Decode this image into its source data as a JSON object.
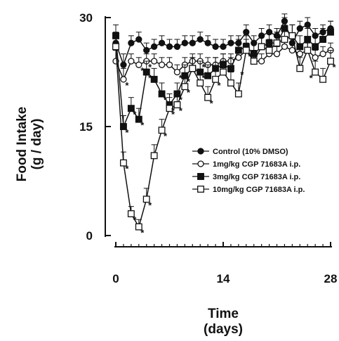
{
  "chart_data": {
    "type": "line",
    "xlabel": "Time",
    "xlabel_unit": "(days)",
    "ylabel": "Food Intake",
    "ylabel_unit": "(g / day)",
    "xlim": [
      0,
      28
    ],
    "ylim": [
      0,
      30
    ],
    "xticks": [
      0,
      14,
      28
    ],
    "yticks": [
      0,
      15,
      30
    ],
    "x": [
      0,
      1,
      2,
      3,
      4,
      5,
      6,
      7,
      8,
      9,
      10,
      11,
      12,
      13,
      14,
      15,
      16,
      17,
      18,
      19,
      20,
      21,
      22,
      23,
      24,
      25,
      26,
      27,
      28
    ],
    "series": [
      {
        "name": "Control (10% DMSO)",
        "marker": "filled-circle",
        "values": [
          26.5,
          23.5,
          26.5,
          27.0,
          25.5,
          26.0,
          26.5,
          26.0,
          26.0,
          26.5,
          26.5,
          27.0,
          26.5,
          26.0,
          26.0,
          26.5,
          26.5,
          28.0,
          26.5,
          27.5,
          28.0,
          27.5,
          29.5,
          26.5,
          28.5,
          29.0,
          27.5,
          28.0,
          28.5
        ],
        "errors": [
          1.5,
          1.5,
          1.0,
          1.0,
          1.0,
          1.0,
          1.0,
          1.0,
          1.0,
          1.0,
          1.0,
          1.0,
          1.0,
          1.0,
          1.0,
          1.0,
          1.0,
          1.0,
          1.0,
          1.0,
          1.0,
          1.0,
          1.0,
          1.0,
          1.0,
          1.0,
          1.0,
          1.0,
          1.0
        ]
      },
      {
        "name": "1mg/kg CGP 71683A i.p.",
        "marker": "open-circle",
        "values": [
          24.0,
          21.5,
          24.0,
          23.5,
          24.0,
          24.0,
          23.5,
          23.5,
          22.5,
          23.5,
          24.0,
          24.0,
          23.5,
          23.5,
          24.0,
          24.0,
          24.5,
          25.5,
          24.0,
          24.0,
          25.0,
          25.0,
          26.0,
          25.5,
          25.0,
          25.5,
          24.5,
          25.0,
          25.5
        ],
        "errors": [
          1.5,
          1.5,
          1.0,
          1.0,
          1.0,
          1.0,
          1.0,
          1.0,
          1.0,
          1.0,
          1.0,
          1.0,
          1.0,
          1.0,
          1.0,
          1.0,
          1.0,
          1.0,
          1.0,
          1.0,
          1.0,
          1.0,
          1.0,
          1.0,
          1.0,
          1.0,
          1.0,
          1.0,
          1.0
        ]
      },
      {
        "name": "3mg/kg CGP 71683A i.p.",
        "marker": "filled-square",
        "values": [
          27.5,
          15.0,
          17.5,
          16.0,
          22.5,
          21.5,
          19.5,
          18.0,
          19.5,
          22.0,
          23.0,
          22.5,
          22.0,
          23.0,
          23.5,
          23.0,
          25.5,
          26.0,
          25.0,
          26.0,
          26.5,
          26.5,
          28.5,
          27.5,
          26.0,
          27.0,
          26.0,
          27.0,
          28.0
        ],
        "errors": [
          1.5,
          1.5,
          1.5,
          1.5,
          1.5,
          1.5,
          1.5,
          1.5,
          1.5,
          1.5,
          1.5,
          1.5,
          1.5,
          1.5,
          1.5,
          1.5,
          1.5,
          1.5,
          1.5,
          1.5,
          1.5,
          1.5,
          1.5,
          1.5,
          1.5,
          1.5,
          1.5,
          1.5,
          1.5
        ]
      },
      {
        "name": "10mg/kg CGP 71683A i.p.",
        "marker": "open-square",
        "values": [
          26.0,
          10.0,
          3.0,
          1.2,
          5.0,
          11.0,
          14.5,
          17.5,
          18.0,
          20.5,
          23.0,
          21.0,
          19.0,
          21.5,
          22.5,
          21.0,
          19.5,
          25.5,
          24.0,
          26.0,
          25.5,
          26.5,
          27.0,
          27.5,
          23.0,
          25.5,
          22.5,
          21.5,
          24.0
        ],
        "errors": [
          1.5,
          1.5,
          1.0,
          1.0,
          1.5,
          1.5,
          1.5,
          1.5,
          1.5,
          1.5,
          1.5,
          1.5,
          1.5,
          1.5,
          1.5,
          1.5,
          1.5,
          1.5,
          1.5,
          1.5,
          1.5,
          1.5,
          1.5,
          1.5,
          1.5,
          1.5,
          1.5,
          1.5,
          1.5
        ]
      }
    ],
    "annotations": [
      {
        "text": "*",
        "x": 1,
        "y": 21.5
      },
      {
        "text": "*",
        "x": 1,
        "y": 15.0
      },
      {
        "text": "*",
        "x": 1,
        "y": 10.0
      },
      {
        "text": "*",
        "x": 2,
        "y": 17.5
      },
      {
        "text": "*",
        "x": 2,
        "y": 3.0
      },
      {
        "text": "*",
        "x": 3,
        "y": 23.5
      },
      {
        "text": "*",
        "x": 3,
        "y": 16.0
      },
      {
        "text": "*",
        "x": 3,
        "y": 1.2
      },
      {
        "text": "*",
        "x": 4,
        "y": 24.0
      },
      {
        "text": "*",
        "x": 4,
        "y": 22.5
      },
      {
        "text": "*",
        "x": 4,
        "y": 5.0
      },
      {
        "text": "*",
        "x": 6,
        "y": 19.5
      },
      {
        "text": "*",
        "x": 6,
        "y": 14.5
      },
      {
        "text": "*",
        "x": 7,
        "y": 18.0
      },
      {
        "text": "*",
        "x": 7,
        "y": 17.5
      },
      {
        "text": "*",
        "x": 8,
        "y": 22.5
      },
      {
        "text": "*",
        "x": 8,
        "y": 19.5
      },
      {
        "text": "*",
        "x": 8,
        "y": 18.0
      },
      {
        "text": "*",
        "x": 9,
        "y": 22.0
      },
      {
        "text": "*",
        "x": 9,
        "y": 20.5
      },
      {
        "text": "*",
        "x": 11,
        "y": 24.0
      },
      {
        "text": "*",
        "x": 11,
        "y": 22.5
      },
      {
        "text": "*",
        "x": 12,
        "y": 19.0
      },
      {
        "text": "*",
        "x": 13,
        "y": 21.5
      },
      {
        "text": "*",
        "x": 16,
        "y": 23.0
      },
      {
        "text": "*",
        "x": 17,
        "y": 25.5
      },
      {
        "text": "*",
        "x": 25,
        "y": 22.5
      },
      {
        "text": "*",
        "x": 28,
        "y": 24.0
      }
    ],
    "legend_position": "center-right",
    "grid": false
  }
}
